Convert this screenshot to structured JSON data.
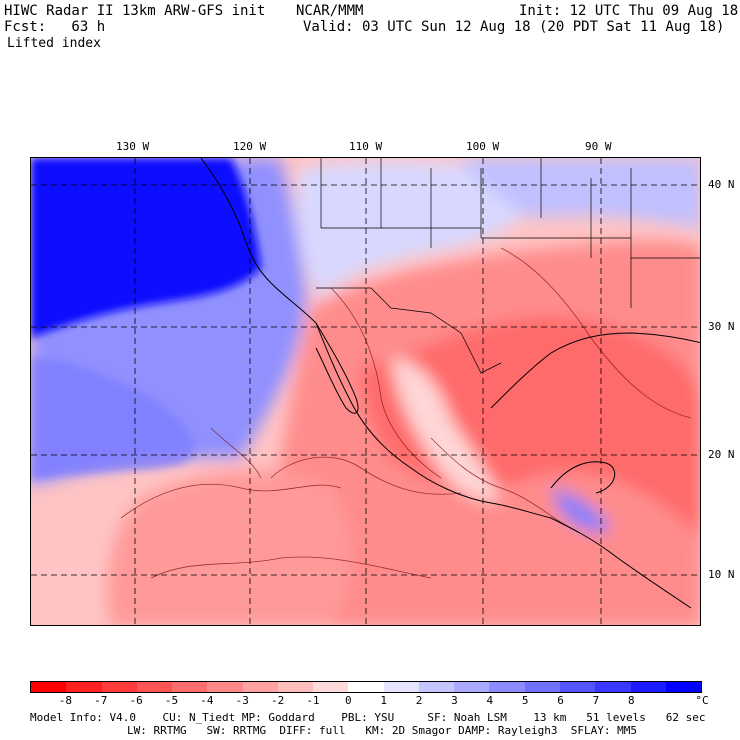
{
  "header": {
    "title": "HIWC Radar II 13km ARW-GFS init",
    "org": "NCAR/MMM",
    "init": "Init: 12 UTC Thu 09 Aug 18",
    "fcst": "Fcst:   63 h",
    "valid": "Valid: 03 UTC Sun 12 Aug 18 (20 PDT Sat 11 Aug 18)",
    "field": "Lifted index"
  },
  "map": {
    "lon_labels": [
      "130 W",
      "120 W",
      "110 W",
      "100 W",
      "90 W"
    ],
    "lat_labels": [
      "40 N",
      "30 N",
      "20 N",
      "10 N"
    ]
  },
  "colorbar": {
    "colors": [
      "#ff0000",
      "#ff2020",
      "#ff3c3c",
      "#ff5454",
      "#ff6e6e",
      "#ff8888",
      "#ffa2a2",
      "#ffbebe",
      "#ffdada",
      "#ffffff",
      "#e4e4ff",
      "#c6c6ff",
      "#aaaaff",
      "#8c8cff",
      "#7070ff",
      "#5454ff",
      "#3838ff",
      "#1c1cff",
      "#0000ff"
    ],
    "labels": [
      "-8",
      "-7",
      "-6",
      "-5",
      "-4",
      "-3",
      "-2",
      "-1",
      "0",
      "1",
      "2",
      "3",
      "4",
      "5",
      "6",
      "7",
      "8"
    ],
    "unit": "°C"
  },
  "model_info": {
    "line1": "Model Info: V4.0    CU: N_Tiedt MP: Goddard    PBL: YSU     SF: Noah LSM    13 km   51 levels   62 sec",
    "line2": "LW: RRTMG   SW: RRTMG  DIFF: full   KM: 2D Smagor DAMP: Rayleigh3  SFLAY: MM5"
  }
}
